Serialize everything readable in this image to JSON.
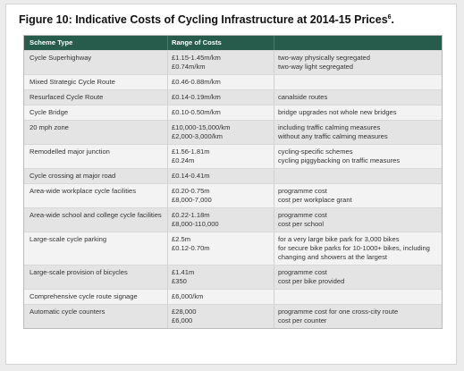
{
  "title": "Figure 10: Indicative Costs of Cycling Infrastructure at 2014-15 Prices",
  "title_sup": "6",
  "title_end": ".",
  "table": {
    "headers": [
      "Scheme Type",
      "Range of Costs"
    ],
    "rows": [
      {
        "scheme": "Cycle Superhighway",
        "costs": [
          "£1.15-1.45m/km",
          "£0.74m/km"
        ],
        "notes": [
          "two-way physically segregated",
          "two-way light segregated"
        ]
      },
      {
        "scheme": "Mixed Strategic Cycle Route",
        "costs": [
          "£0.46-0.88m/km"
        ]
      },
      {
        "scheme": "Resurfaced Cycle Route",
        "costs": [
          "£0.14-0.19m/km"
        ],
        "notes": [
          "canalside routes"
        ]
      },
      {
        "scheme": "Cycle Bridge",
        "costs": [
          "£0.10-0.50m/km"
        ],
        "notes": [
          "bridge upgrades not whole new bridges"
        ]
      },
      {
        "scheme": "20 mph zone",
        "costs": [
          "£10,000-15,000/km",
          "£2,000-3,000/km"
        ],
        "notes": [
          "including traffic calming measures",
          "without any traffic calming measures"
        ]
      },
      {
        "scheme": "Remodelled major junction",
        "costs": [
          "£1.56-1.81m",
          "£0.24m"
        ],
        "notes": [
          "cycling-specific schemes",
          "cycling piggybacking on traffic measures"
        ]
      },
      {
        "scheme": "Cycle crossing at major road",
        "costs": [
          "£0.14-0.41m"
        ]
      },
      {
        "scheme": "Area-wide workplace cycle facilities",
        "costs": [
          "£0.20-0.75m",
          "£8,000-7,000"
        ],
        "notes": [
          "programme cost",
          "cost per workplace grant"
        ]
      },
      {
        "scheme": "Area-wide school and college cycle facilities",
        "costs": [
          "£0.22-1.18m",
          "£8,000-110,000"
        ],
        "notes": [
          "programme cost",
          "cost per school"
        ]
      },
      {
        "scheme": "Large-scale cycle parking",
        "costs": [
          "£2.5m",
          "£0.12-0.70m"
        ],
        "notes": [
          "for a very large bike park for 3,000 bikes",
          "for secure bike parks for 10-1000+ bikes, including changing and showers at the largest"
        ]
      },
      {
        "scheme": "Large-scale provision of bicycles",
        "costs": [
          "£1.41m",
          "£350"
        ],
        "notes": [
          "programme cost",
          "cost per bike provided"
        ]
      },
      {
        "scheme": "Comprehensive cycle route signage",
        "costs": [
          "£6,000/km"
        ]
      },
      {
        "scheme": "Automatic cycle counters",
        "costs": [
          "£28,000",
          "£6,000"
        ],
        "notes": [
          "programme cost for one cross-city route",
          "cost per counter"
        ]
      }
    ]
  }
}
